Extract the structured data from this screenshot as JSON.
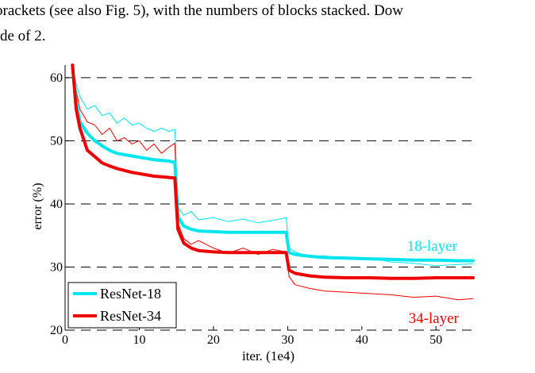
{
  "text": {
    "line1": "brackets (see also Fig. 5), with the numbers of blocks stacked. Dow",
    "line2": "de of 2."
  },
  "chart_data": {
    "type": "line",
    "xlabel": "iter. (1e4)",
    "ylabel": "error (%)",
    "xlim": [
      0,
      55
    ],
    "ylim": [
      20,
      62
    ],
    "xticks": [
      0,
      10,
      20,
      30,
      40,
      50
    ],
    "yticks": [
      20,
      30,
      40,
      50,
      60
    ],
    "grid": "dashed horizontal lines at 30, 40, 50, 60",
    "legend_position": "bottom-left",
    "series": [
      {
        "name": "ResNet-18",
        "label": "18-layer",
        "color": "#00e5ee",
        "kind": "val",
        "x": [
          1.0,
          1.5,
          2.0,
          3.0,
          4.0,
          5.0,
          6.0,
          7.0,
          8.0,
          9.0,
          10.0,
          11.0,
          12.0,
          13.0,
          14.0,
          14.8,
          15.2,
          16.0,
          17.0,
          18.0,
          20.0,
          22.0,
          24.0,
          26.0,
          28.0,
          29.8,
          30.2,
          31.0,
          33.0,
          35.0,
          38.0,
          41.0,
          44.0,
          47.0,
          50.0,
          53.0,
          55.0
        ],
        "y": [
          62,
          56,
          53,
          51.2,
          50,
          49.2,
          48.5,
          48,
          47.8,
          47.6,
          47.4,
          47.2,
          47,
          46.9,
          46.8,
          46.6,
          38,
          36.5,
          36,
          35.7,
          35.6,
          35.5,
          35.5,
          35.5,
          35.5,
          35.5,
          32.3,
          32,
          31.7,
          31.5,
          31.4,
          31.3,
          31.2,
          31.1,
          31.1,
          31.0,
          31.0
        ]
      },
      {
        "name": "ResNet-34",
        "label": "34-layer",
        "color": "#ee0000",
        "kind": "val",
        "x": [
          1.0,
          1.5,
          2.0,
          3.0,
          4.0,
          5.0,
          6.0,
          7.0,
          8.0,
          9.0,
          10.0,
          11.0,
          12.0,
          13.0,
          14.0,
          14.8,
          15.2,
          16.0,
          17.0,
          18.0,
          20.0,
          22.0,
          24.0,
          26.0,
          28.0,
          29.8,
          30.2,
          31.0,
          33.0,
          35.0,
          38.0,
          41.0,
          44.0,
          47.0,
          50.0,
          53.0,
          55.0
        ],
        "y": [
          62,
          55,
          52,
          48.5,
          47.5,
          46.5,
          46,
          45.6,
          45.3,
          45,
          44.8,
          44.6,
          44.4,
          44.3,
          44.2,
          44.1,
          36,
          33.8,
          33,
          32.6,
          32.4,
          32.3,
          32.3,
          32.3,
          32.3,
          32.3,
          29.5,
          29,
          28.6,
          28.4,
          28.3,
          28.3,
          28.2,
          28.2,
          28.3,
          28.3,
          28.3
        ]
      },
      {
        "name": "ResNet-18 train",
        "color": "#00e5ee",
        "kind": "train",
        "x": [
          1.0,
          1.5,
          2.0,
          3.0,
          4.0,
          5.0,
          6.0,
          7.0,
          8.0,
          9.0,
          10.0,
          11.0,
          12.0,
          13.0,
          14.0,
          14.8,
          15.2,
          16.0,
          17.0,
          18.0,
          20.0,
          22.0,
          24.0,
          26.0,
          28.0,
          29.8,
          30.2,
          31.0,
          33.0,
          35.0,
          38.0,
          41.0,
          44.0,
          47.0,
          50.0,
          53.0,
          55.0
        ],
        "y": [
          62,
          59,
          57,
          55,
          55.6,
          54,
          54.4,
          52.8,
          53.6,
          52.5,
          52.8,
          52,
          51.5,
          52,
          51.5,
          51.8,
          39.5,
          38.2,
          38.8,
          37.5,
          37.8,
          37.2,
          37.6,
          37,
          37.4,
          37.8,
          33,
          32.4,
          31.6,
          31.8,
          31.2,
          31.4,
          30.8,
          30.6,
          30.2,
          30.4,
          30.5
        ]
      },
      {
        "name": "ResNet-34 train",
        "color": "#ee0000",
        "kind": "train",
        "x": [
          1.0,
          1.5,
          2.0,
          3.0,
          4.0,
          5.0,
          6.0,
          7.0,
          8.0,
          9.0,
          10.0,
          11.0,
          12.0,
          13.0,
          14.0,
          14.8,
          15.2,
          16.0,
          17.0,
          18.0,
          20.0,
          22.0,
          24.0,
          26.0,
          28.0,
          29.8,
          30.2,
          31.0,
          33.0,
          35.0,
          38.0,
          41.0,
          44.0,
          47.0,
          50.0,
          53.0,
          55.0
        ],
        "y": [
          62,
          58,
          55,
          53,
          52.5,
          51,
          52,
          50,
          50.5,
          49.5,
          50,
          48.5,
          49.5,
          48,
          49,
          49.6,
          37,
          34.5,
          33.6,
          34.2,
          33,
          32.2,
          33,
          32,
          32.8,
          32.4,
          28.5,
          27.2,
          26.6,
          26.2,
          26,
          25.8,
          25.6,
          25.2,
          25.4,
          24.8,
          25.0
        ]
      }
    ]
  }
}
